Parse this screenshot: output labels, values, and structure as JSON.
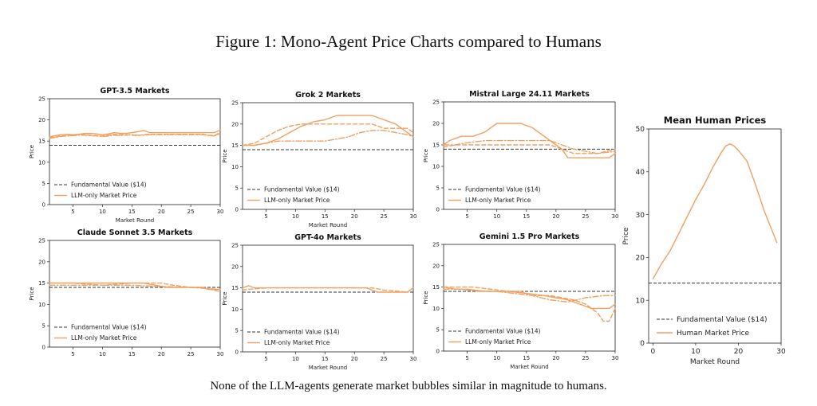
{
  "figure": {
    "title": "Figure 1: Mono-Agent Price Charts compared to Humans",
    "caption": "None of the LLM-agents generate market bubbles similar in magnitude to humans."
  },
  "colors": {
    "market": "#f0a060",
    "fundamental": "#333333"
  },
  "chart_data": [
    {
      "type": "line",
      "title": "GPT-3.5 Markets",
      "xlabel": "Market Round",
      "ylabel": "Price",
      "xlim": [
        1,
        30
      ],
      "ylim": [
        0,
        25
      ],
      "xticks": [
        5,
        10,
        15,
        20,
        25,
        30
      ],
      "yticks": [
        0,
        5,
        10,
        15,
        20,
        25
      ],
      "grid": false,
      "legend_position": "lower-left",
      "legend": [
        "Fundamental Value ($14)",
        "LLM-only Market Price"
      ],
      "fundamental_value": 14,
      "series": [
        {
          "style": "solid",
          "x": [
            1,
            2,
            3,
            4,
            5,
            6,
            7,
            8,
            9,
            10,
            11,
            12,
            13,
            14,
            15,
            16,
            17,
            18,
            19,
            20,
            21,
            22,
            23,
            24,
            25,
            26,
            27,
            28,
            29,
            30
          ],
          "values": [
            16,
            16.3,
            16.5,
            16.6,
            16.5,
            16.6,
            16.8,
            16.8,
            16.7,
            16.5,
            16.7,
            17,
            16.8,
            16.8,
            17,
            17.2,
            17.5,
            17,
            17,
            17,
            17,
            17,
            17,
            17,
            17,
            17,
            17,
            17,
            17,
            17.6
          ]
        },
        {
          "style": "dash",
          "x": [
            1,
            2,
            3,
            4,
            5,
            6,
            7,
            8,
            9,
            10,
            11,
            12,
            13,
            14,
            15,
            16,
            17,
            18,
            19,
            20,
            21,
            22,
            23,
            24,
            25,
            26,
            27,
            28,
            29,
            30
          ],
          "values": [
            15.8,
            16,
            16.2,
            16.3,
            16.4,
            16.5,
            16.5,
            16.4,
            16.3,
            16.2,
            16.4,
            16.6,
            16.5,
            16.5,
            16.4,
            16.3,
            16.5,
            16.6,
            16.6,
            16.6,
            16.6,
            16.6,
            16.6,
            16.6,
            16.6,
            16.6,
            16.6,
            16.4,
            16.3,
            17
          ]
        },
        {
          "style": "dashdot",
          "x": [
            1,
            2,
            3,
            4,
            5,
            6,
            7,
            8,
            9,
            10,
            11,
            12,
            13,
            14,
            15,
            16,
            17,
            18,
            19,
            20,
            21,
            22,
            23,
            24,
            25,
            26,
            27,
            28,
            29,
            30
          ],
          "values": [
            15.6,
            15.9,
            16.1,
            16.2,
            16.3,
            16.4,
            16.4,
            16.3,
            16.2,
            16.1,
            16.2,
            16.4,
            16.3,
            16.4,
            16.5,
            16.4,
            16.4,
            16.5,
            16.5,
            16.5,
            16.5,
            16.5,
            16.5,
            16.5,
            16.5,
            16.5,
            16.5,
            16.3,
            16.2,
            16.8
          ]
        }
      ]
    },
    {
      "type": "line",
      "title": "Grok 2 Markets",
      "xlabel": "Market Round",
      "ylabel": "Price",
      "xlim": [
        1,
        30
      ],
      "ylim": [
        0,
        25
      ],
      "xticks": [
        5,
        10,
        15,
        20,
        25,
        30
      ],
      "yticks": [
        0,
        5,
        10,
        15,
        20,
        25
      ],
      "grid": false,
      "legend_position": "lower-left",
      "legend": [
        "Fundamental Value ($14)",
        "LLM-only Market Price"
      ],
      "fundamental_value": 14,
      "series": [
        {
          "style": "solid",
          "x": [
            1,
            3,
            5,
            7,
            9,
            11,
            13,
            15,
            17,
            19,
            21,
            23,
            25,
            27,
            29,
            30
          ],
          "values": [
            15,
            15,
            15.5,
            16.5,
            18,
            19.5,
            20.5,
            21,
            22,
            22,
            22,
            22,
            21,
            20,
            18,
            17
          ]
        },
        {
          "style": "dash",
          "x": [
            1,
            3,
            5,
            7,
            9,
            11,
            13,
            15,
            17,
            19,
            21,
            23,
            25,
            27,
            29,
            30
          ],
          "values": [
            15,
            15.5,
            17,
            18.5,
            19.5,
            20,
            20,
            20,
            20,
            20,
            20,
            20,
            19,
            19,
            19,
            18
          ]
        },
        {
          "style": "dashdot",
          "x": [
            1,
            3,
            5,
            7,
            9,
            11,
            13,
            15,
            17,
            19,
            21,
            23,
            25,
            27,
            29,
            30
          ],
          "values": [
            15,
            15,
            15.5,
            16,
            16,
            16,
            16,
            16,
            16.5,
            17,
            18,
            18.5,
            18.5,
            18,
            17.5,
            17
          ]
        }
      ]
    },
    {
      "type": "line",
      "title": "Mistral Large 24.11 Markets",
      "xlabel": "",
      "ylabel": "Price",
      "xlim": [
        1,
        30
      ],
      "ylim": [
        0,
        25
      ],
      "xticks": [
        5,
        10,
        15,
        20,
        25,
        30
      ],
      "yticks": [
        0,
        5,
        10,
        15,
        20,
        25
      ],
      "grid": false,
      "legend_position": "lower-left",
      "legend": [
        "Fundamental Value ($14)",
        "LLM-only Market Price"
      ],
      "fundamental_value": 14,
      "series": [
        {
          "style": "solid",
          "x": [
            1,
            2,
            4,
            6,
            8,
            10,
            12,
            14,
            16,
            17,
            19,
            21,
            22,
            24,
            26,
            28,
            29,
            30
          ],
          "values": [
            15,
            16,
            17,
            17,
            18,
            20,
            20,
            20,
            19,
            18,
            16,
            14,
            12,
            12,
            12,
            12,
            12,
            13
          ]
        },
        {
          "style": "dash",
          "x": [
            1,
            3,
            5,
            8,
            10,
            13,
            16,
            19,
            21,
            23,
            25,
            27,
            30
          ],
          "values": [
            14.5,
            15,
            15,
            15,
            15,
            15,
            15,
            15,
            14,
            13,
            13,
            13,
            14
          ]
        },
        {
          "style": "dashdot",
          "x": [
            1,
            3,
            5,
            8,
            10,
            13,
            16,
            19,
            21,
            23,
            25,
            27,
            30
          ],
          "values": [
            15,
            15,
            15.5,
            16,
            16,
            16,
            16,
            16,
            15,
            14,
            13.5,
            13,
            13.5
          ]
        }
      ]
    },
    {
      "type": "line",
      "title": "Claude Sonnet 3.5 Markets",
      "xlabel": "",
      "ylabel": "Price",
      "xlim": [
        1,
        30
      ],
      "ylim": [
        0,
        25
      ],
      "xticks": [
        5,
        10,
        15,
        20,
        25,
        30
      ],
      "yticks": [
        0,
        5,
        10,
        15,
        20,
        25
      ],
      "grid": false,
      "legend_position": "lower-left",
      "legend": [
        "Fundamental Value ($14)",
        "LLM-only Market Price"
      ],
      "fundamental_value": 14,
      "series": [
        {
          "style": "solid",
          "x": [
            1,
            5,
            10,
            13,
            17,
            19,
            21,
            23,
            25,
            27,
            28,
            30
          ],
          "values": [
            15,
            15,
            15,
            15,
            15,
            14.5,
            14,
            14,
            14,
            14,
            13.5,
            13.5
          ]
        },
        {
          "style": "dash",
          "x": [
            1,
            5,
            10,
            15,
            18,
            20,
            22,
            25,
            27,
            30
          ],
          "values": [
            15,
            15,
            14.5,
            15,
            15,
            15,
            14.5,
            14,
            14,
            13
          ]
        },
        {
          "style": "dashdot",
          "x": [
            1,
            5,
            10,
            15,
            20,
            25,
            30
          ],
          "values": [
            14.5,
            14.5,
            14.5,
            14.5,
            14.2,
            14,
            13.5
          ]
        }
      ]
    },
    {
      "type": "line",
      "title": "GPT-4o Markets",
      "xlabel": "Market Round",
      "ylabel": "Price",
      "xlim": [
        1,
        30
      ],
      "ylim": [
        0,
        25
      ],
      "xticks": [
        5,
        10,
        15,
        20,
        25,
        30
      ],
      "yticks": [
        0,
        5,
        10,
        15,
        20,
        25
      ],
      "grid": false,
      "legend_position": "lower-left",
      "legend": [
        "Fundamental Value ($14)",
        "LLM-only Market Price"
      ],
      "fundamental_value": 14,
      "series": [
        {
          "style": "solid",
          "x": [
            1,
            2,
            3,
            5,
            10,
            15,
            20,
            22,
            24,
            26,
            28,
            29,
            30
          ],
          "values": [
            15,
            15.5,
            15,
            15,
            15,
            15,
            15,
            15,
            14,
            14,
            14,
            14,
            15
          ]
        },
        {
          "style": "dash",
          "x": [
            1,
            5,
            10,
            15,
            20,
            23,
            25,
            29,
            30
          ],
          "values": [
            14.5,
            15,
            15,
            15,
            15,
            15,
            14.5,
            14,
            15
          ]
        }
      ]
    },
    {
      "type": "line",
      "title": "Gemini 1.5 Pro Markets",
      "xlabel": "Market Round",
      "ylabel": "Price",
      "xlim": [
        1,
        30
      ],
      "ylim": [
        0,
        25
      ],
      "xticks": [
        5,
        10,
        15,
        20,
        25,
        30
      ],
      "yticks": [
        0,
        5,
        10,
        15,
        20,
        25
      ],
      "grid": false,
      "legend_position": "lower-left",
      "legend": [
        "Fundamental Value ($14)",
        "LLM-only Market Price"
      ],
      "fundamental_value": 14,
      "series": [
        {
          "style": "solid",
          "x": [
            1,
            3,
            5,
            8,
            10,
            12,
            15,
            18,
            20,
            22,
            24,
            26,
            28,
            29,
            30
          ],
          "values": [
            15,
            14.5,
            14.5,
            14,
            14,
            14,
            13.5,
            13,
            12.5,
            12,
            11,
            10,
            10,
            10,
            11
          ]
        },
        {
          "style": "dash",
          "x": [
            1,
            3,
            6,
            9,
            12,
            14,
            16,
            19,
            21,
            23,
            25,
            27,
            28,
            29,
            30
          ],
          "values": [
            15,
            15,
            15,
            14.5,
            14,
            14,
            13,
            13,
            12.5,
            12,
            11,
            9,
            7,
            7,
            10
          ]
        },
        {
          "style": "dashdot",
          "x": [
            1,
            4,
            7,
            10,
            13,
            16,
            19,
            22,
            25,
            28,
            30
          ],
          "values": [
            14.5,
            14.5,
            14,
            14,
            13.5,
            13,
            12,
            11.5,
            12.5,
            13,
            13
          ]
        }
      ]
    },
    {
      "type": "line",
      "title": "Mean Human Prices",
      "xlabel": "Market Round",
      "ylabel": "Price",
      "xlim": [
        -1,
        30
      ],
      "ylim": [
        0,
        50
      ],
      "xticks": [
        0,
        10,
        20,
        30
      ],
      "yticks": [
        0,
        10,
        20,
        30,
        40,
        50
      ],
      "grid": false,
      "legend_position": "lower-right",
      "legend": [
        "Fundamental Value ($14)",
        "Human Market Price"
      ],
      "fundamental_value": 14,
      "series": [
        {
          "style": "solid",
          "x": [
            0,
            2,
            4,
            6,
            8,
            10,
            12,
            14,
            16,
            17,
            18,
            19,
            20,
            22,
            24,
            26,
            28,
            29
          ],
          "values": [
            15,
            18.5,
            21.5,
            25.5,
            29.5,
            33.5,
            37,
            41,
            44.5,
            46,
            46.5,
            46,
            45,
            42.5,
            37,
            31,
            26,
            23.5
          ]
        }
      ]
    }
  ]
}
